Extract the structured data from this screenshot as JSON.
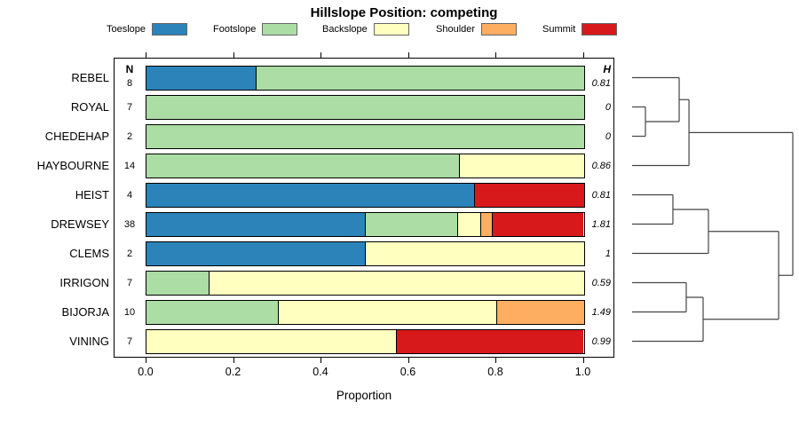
{
  "title": "Hillslope Position: competing",
  "columns": {
    "n_header": "N",
    "h_header": "H"
  },
  "legend": [
    {
      "label": "Toeslope",
      "color": "#2B83BA"
    },
    {
      "label": "Footslope",
      "color": "#ABDDA4"
    },
    {
      "label": "Backslope",
      "color": "#FFFFBF"
    },
    {
      "label": "Shoulder",
      "color": "#FDAE61"
    },
    {
      "label": "Summit",
      "color": "#D7191C"
    }
  ],
  "chart_data": {
    "type": "bar",
    "stacked": true,
    "orientation": "horizontal",
    "title": "Hillslope Position: competing",
    "xlabel": "Proportion",
    "xlim": [
      0,
      1
    ],
    "x_ticks": [
      0.0,
      0.2,
      0.4,
      0.6,
      0.8,
      1.0
    ],
    "x_tick_labels": [
      "0.0",
      "0.2",
      "0.4",
      "0.6",
      "0.8",
      "1.0"
    ],
    "categories": [
      "Toeslope",
      "Footslope",
      "Backslope",
      "Shoulder",
      "Summit"
    ],
    "colors": {
      "Toeslope": "#2B83BA",
      "Footslope": "#ABDDA4",
      "Backslope": "#FFFFBF",
      "Shoulder": "#FDAE61",
      "Summit": "#D7191C"
    },
    "rows": [
      {
        "name": "REBEL",
        "n": 8,
        "h": "0.81",
        "segments": [
          {
            "category": "Toeslope",
            "value": 0.25
          },
          {
            "category": "Footslope",
            "value": 0.75
          }
        ]
      },
      {
        "name": "ROYAL",
        "n": 7,
        "h": "0",
        "segments": [
          {
            "category": "Footslope",
            "value": 1.0
          }
        ]
      },
      {
        "name": "CHEDEHAP",
        "n": 2,
        "h": "0",
        "segments": [
          {
            "category": "Footslope",
            "value": 1.0
          }
        ]
      },
      {
        "name": "HAYBOURNE",
        "n": 14,
        "h": "0.86",
        "segments": [
          {
            "category": "Footslope",
            "value": 0.714
          },
          {
            "category": "Backslope",
            "value": 0.286
          }
        ]
      },
      {
        "name": "HEIST",
        "n": 4,
        "h": "0.81",
        "segments": [
          {
            "category": "Toeslope",
            "value": 0.75
          },
          {
            "category": "Summit",
            "value": 0.25
          }
        ]
      },
      {
        "name": "DREWSEY",
        "n": 38,
        "h": "1.81",
        "segments": [
          {
            "category": "Toeslope",
            "value": 0.5
          },
          {
            "category": "Footslope",
            "value": 0.2105
          },
          {
            "category": "Backslope",
            "value": 0.0526
          },
          {
            "category": "Shoulder",
            "value": 0.0263
          },
          {
            "category": "Summit",
            "value": 0.2105
          }
        ]
      },
      {
        "name": "CLEMS",
        "n": 2,
        "h": "1",
        "segments": [
          {
            "category": "Toeslope",
            "value": 0.5
          },
          {
            "category": "Backslope",
            "value": 0.5
          }
        ]
      },
      {
        "name": "IRRIGON",
        "n": 7,
        "h": "0.59",
        "segments": [
          {
            "category": "Footslope",
            "value": 0.143
          },
          {
            "category": "Backslope",
            "value": 0.857
          }
        ]
      },
      {
        "name": "BIJORJA",
        "n": 10,
        "h": "1.49",
        "segments": [
          {
            "category": "Footslope",
            "value": 0.3
          },
          {
            "category": "Backslope",
            "value": 0.5
          },
          {
            "category": "Shoulder",
            "value": 0.2
          }
        ]
      },
      {
        "name": "VINING",
        "n": 7,
        "h": "0.99",
        "segments": [
          {
            "category": "Backslope",
            "value": 0.571
          },
          {
            "category": "Summit",
            "value": 0.429
          }
        ]
      }
    ],
    "dendrogram": {
      "leaf_order": [
        "REBEL",
        "ROYAL",
        "CHEDEHAP",
        "HAYBOURNE",
        "HEIST",
        "DREWSEY",
        "CLEMS",
        "IRRIGON",
        "BIJORJA",
        "VINING"
      ],
      "merges": [
        {
          "a": "L1",
          "b": "L2",
          "height": 0.083
        },
        {
          "a": "L0",
          "b": "M0",
          "height": 0.293
        },
        {
          "a": "M1",
          "b": "L3",
          "height": 0.354
        },
        {
          "a": "L4",
          "b": "L5",
          "height": 0.254
        },
        {
          "a": "M3",
          "b": "L6",
          "height": 0.475
        },
        {
          "a": "L7",
          "b": "L8",
          "height": 0.337
        },
        {
          "a": "M5",
          "b": "L9",
          "height": 0.442
        },
        {
          "a": "M4",
          "b": "M6",
          "height": 0.912
        },
        {
          "a": "M2",
          "b": "M7",
          "height": 1.0
        }
      ]
    }
  }
}
